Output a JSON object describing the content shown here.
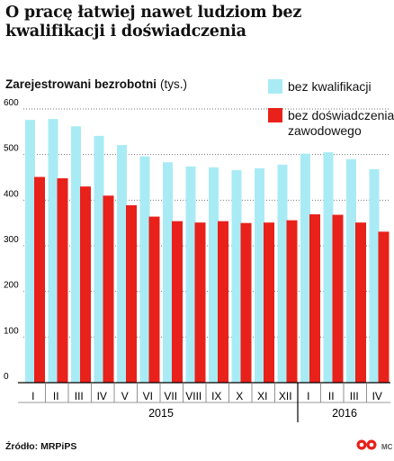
{
  "title": "O pracę łatwiej nawet ludziom bez kwalifikacji i doświadczenia",
  "subtitle": "Zarejestrowani bezrobotni",
  "unit": "(tys.)",
  "source": "Źródło: MRPiPS",
  "credit": "MC",
  "colors": {
    "series1": "#a9ebf5",
    "series2": "#e8211b",
    "grid": "#777777",
    "axis": "#000000"
  },
  "chart_data": {
    "type": "bar",
    "title": "O pracę łatwiej nawet ludziom bez kwalifikacji i doświadczenia",
    "subtitle": "Zarejestrowani bezrobotni (tys.)",
    "ylim": [
      0,
      600
    ],
    "yticks": [
      0,
      100,
      200,
      300,
      400,
      500,
      600
    ],
    "categories": [
      "I",
      "II",
      "III",
      "IV",
      "V",
      "VI",
      "VII",
      "VIII",
      "IX",
      "X",
      "XI",
      "XII",
      "I",
      "II",
      "III",
      "IV"
    ],
    "groups": [
      {
        "label": "2015",
        "count": 12
      },
      {
        "label": "2016",
        "count": 4
      }
    ],
    "series": [
      {
        "name": "bez kwalifikacji",
        "values": [
          576,
          578,
          562,
          541,
          521,
          496,
          483,
          474,
          472,
          466,
          470,
          478,
          502,
          505,
          490,
          468
        ]
      },
      {
        "name": "bez doświadczenia zawodowego",
        "values": [
          451,
          448,
          430,
          410,
          389,
          364,
          354,
          351,
          354,
          350,
          351,
          356,
          369,
          368,
          351,
          331
        ]
      }
    ],
    "grid": true,
    "legend": "top-right"
  }
}
